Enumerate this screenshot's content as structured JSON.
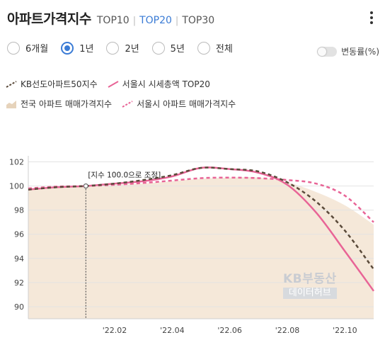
{
  "header": {
    "title": "아파트가격지수",
    "tabs": [
      {
        "label": "TOP10",
        "active": false
      },
      {
        "label": "TOP20",
        "active": true
      },
      {
        "label": "TOP30",
        "active": false
      }
    ]
  },
  "periods": [
    {
      "label": "6개월",
      "selected": false
    },
    {
      "label": "1년",
      "selected": true
    },
    {
      "label": "2년",
      "selected": false
    },
    {
      "label": "5년",
      "selected": false
    },
    {
      "label": "전체",
      "selected": false
    }
  ],
  "toggle": {
    "label": "변동률(%)",
    "on": false
  },
  "watermark": {
    "line1": "KB부동산",
    "line2": "데이터허브"
  },
  "colors": {
    "accent": "#3a7bd5",
    "kb50": "#5a4a3a",
    "seoul_top20": "#e86496",
    "nation_area": "#f5e8d9",
    "seoul_apt": "#e86496"
  },
  "chart_data": {
    "type": "line",
    "title": "",
    "xlabel": "",
    "ylabel": "",
    "x": [
      "2021-11",
      "2021-12",
      "2022-01",
      "2022-02",
      "2022-03",
      "2022-04",
      "2022-05",
      "2022-06",
      "2022-07",
      "2022-08",
      "2022-09",
      "2022-10",
      "2022-11"
    ],
    "x_ticks": [
      {
        "label": "'22.02",
        "x": "2022-02"
      },
      {
        "label": "'22.04",
        "x": "2022-04"
      },
      {
        "label": "'22.06",
        "x": "2022-06"
      },
      {
        "label": "'22.08",
        "x": "2022-08"
      },
      {
        "label": "'22.10",
        "x": "2022-10"
      }
    ],
    "y_ticks": [
      90,
      92,
      94,
      96,
      98,
      100,
      102
    ],
    "ylim": [
      89,
      102.5
    ],
    "grid": true,
    "legend_placement": "top",
    "annotation": {
      "label": "[지수 100.0으로 조정]",
      "x": "2022-01"
    },
    "series": [
      {
        "name": "KB선도아파트50지수",
        "style": "dashed-dark",
        "values": [
          99.7,
          99.9,
          100.0,
          100.2,
          100.5,
          100.9,
          101.5,
          101.4,
          101.2,
          100.3,
          98.7,
          96.3,
          93.1
        ]
      },
      {
        "name": "서울시 시세총액 TOP20",
        "style": "solid-pink",
        "values": [
          99.7,
          99.9,
          100.0,
          100.2,
          100.4,
          100.8,
          101.5,
          101.4,
          101.1,
          100.1,
          97.8,
          94.6,
          91.3
        ]
      },
      {
        "name": "전국 아파트 매매가격지수",
        "style": "area-beige",
        "values": [
          99.8,
          99.95,
          100.0,
          100.1,
          100.2,
          100.4,
          100.6,
          100.7,
          100.7,
          100.3,
          99.5,
          98.4,
          96.8
        ]
      },
      {
        "name": "서울시 아파트 매매가격지수",
        "style": "dashed-pink",
        "values": [
          99.8,
          99.95,
          100.0,
          100.1,
          100.25,
          100.45,
          100.65,
          100.7,
          100.65,
          100.5,
          100.2,
          99.2,
          97.0
        ]
      }
    ]
  }
}
